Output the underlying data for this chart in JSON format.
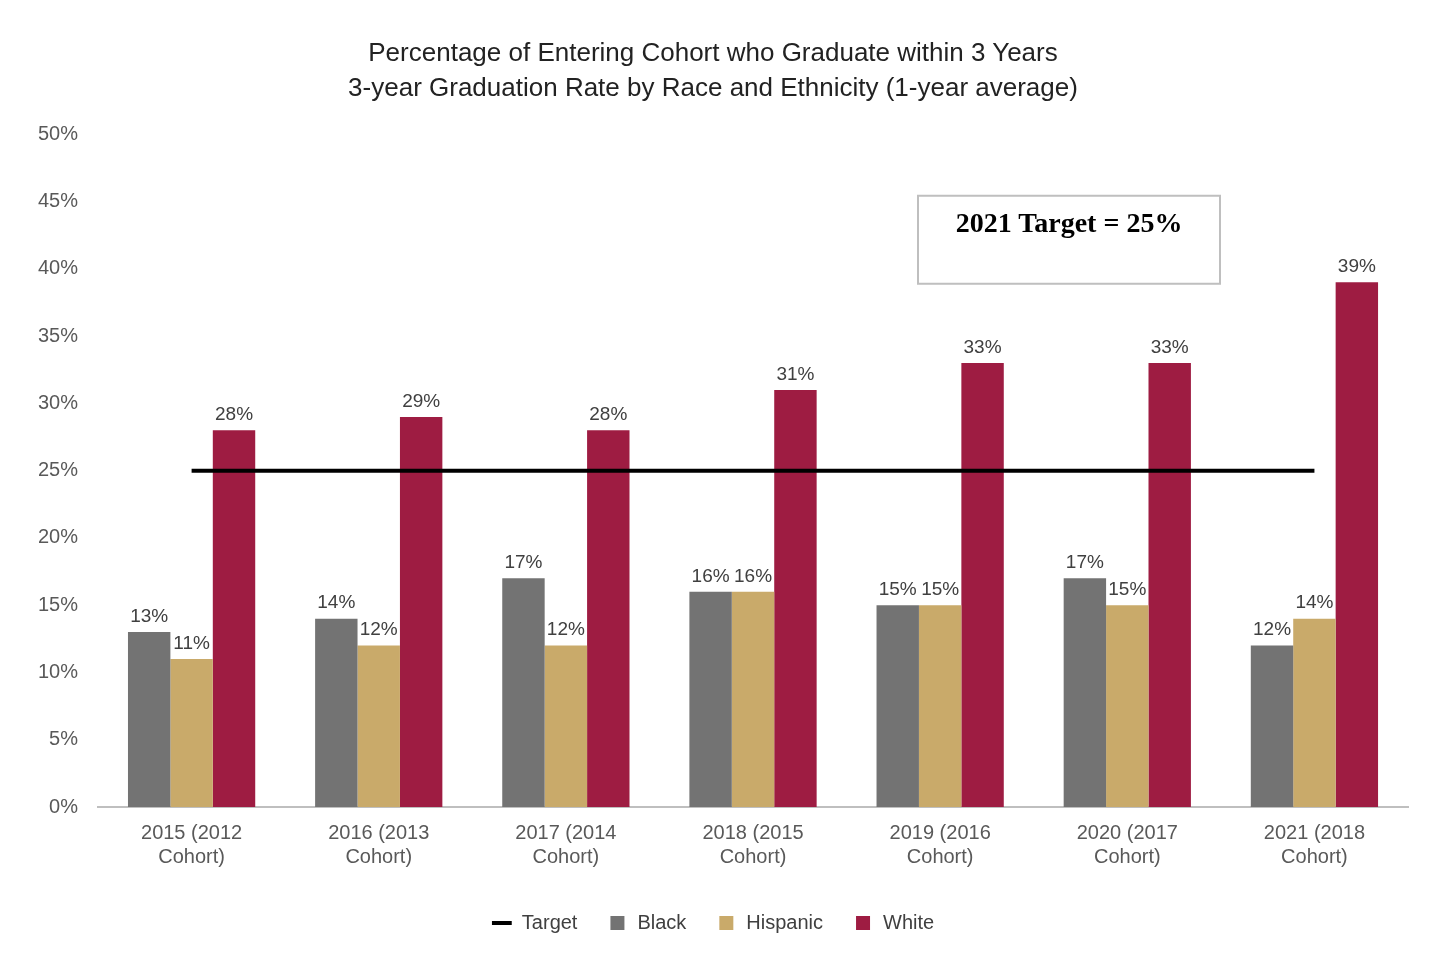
{
  "chart_data": {
    "type": "bar",
    "title": "Percentage of Entering Cohort who Graduate within 3 Years",
    "subtitle": "3-year Graduation Rate by Race and Ethnicity (1-year average)",
    "categories": [
      "2015 (2012 Cohort)",
      "2016 (2013 Cohort)",
      "2017 (2014 Cohort)",
      "2018 (2015 Cohort)",
      "2019 (2016 Cohort)",
      "2020 (2017 Cohort)",
      "2021 (2018 Cohort)"
    ],
    "series": [
      {
        "name": "Black",
        "color": "#737373",
        "values": [
          13,
          14,
          17,
          16,
          15,
          17,
          12
        ],
        "value_labels": [
          "13%",
          "14%",
          "17%",
          "16%",
          "15%",
          "17%",
          "12%"
        ]
      },
      {
        "name": "Hispanic",
        "color": "#c9aa6a",
        "values": [
          11,
          12,
          12,
          16,
          15,
          15,
          14
        ],
        "value_labels": [
          "11%",
          "12%",
          "12%",
          "16%",
          "15%",
          "15%",
          "14%"
        ]
      },
      {
        "name": "White",
        "color": "#9e1c42",
        "values": [
          28,
          29,
          28,
          31,
          33,
          33,
          39
        ],
        "value_labels": [
          "28%",
          "29%",
          "28%",
          "31%",
          "33%",
          "33%",
          "39%"
        ]
      },
      {
        "name": "Target",
        "type": "line",
        "color": "#000000",
        "values": [
          25,
          25,
          25,
          25,
          25,
          25,
          25
        ]
      }
    ],
    "ylim": [
      0,
      50
    ],
    "yticks": [
      {
        "value": 0,
        "label": "0%"
      },
      {
        "value": 5,
        "label": "5%"
      },
      {
        "value": 10,
        "label": "10%"
      },
      {
        "value": 15,
        "label": "15%"
      },
      {
        "value": 20,
        "label": "20%"
      },
      {
        "value": 25,
        "label": "25%"
      },
      {
        "value": 30,
        "label": "30%"
      },
      {
        "value": 35,
        "label": "35%"
      },
      {
        "value": 40,
        "label": "40%"
      },
      {
        "value": 45,
        "label": "45%"
      },
      {
        "value": 50,
        "label": "50%"
      }
    ],
    "grid": false,
    "legend": "bottom",
    "marker": "none",
    "annotations": [
      "2021 Target = 25%"
    ]
  }
}
